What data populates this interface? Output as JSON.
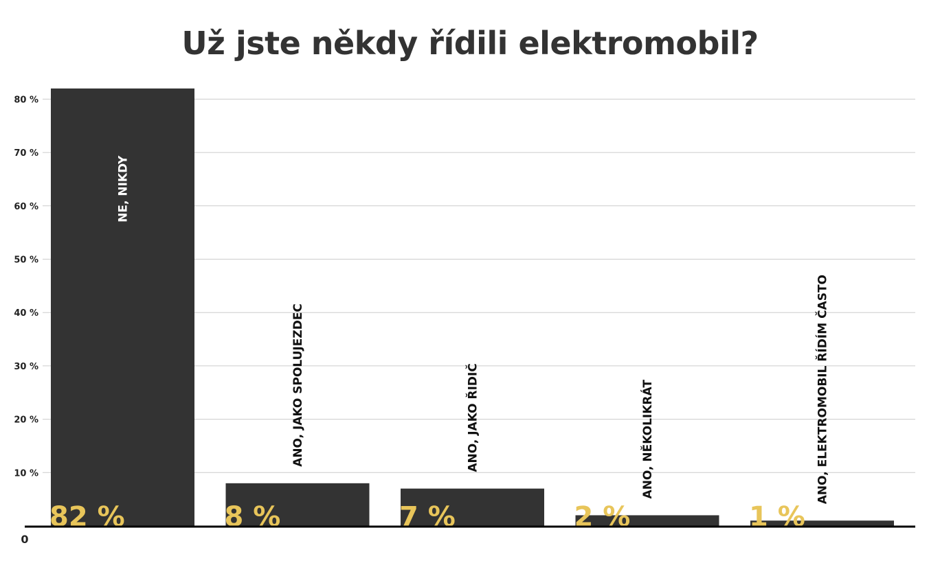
{
  "chart_data": {
    "type": "bar",
    "title": "Už jste někdy řídili elektromobil?",
    "categories": [
      "NE, NIKDY",
      "ANO, JAKO SPOLUJEZDEC",
      "ANO, JAKO ŘIDIČ",
      "ANO, NĚKOLIKRÁT",
      "ANO, ELEKTROMOBIL ŘÍDÍM ČASTO"
    ],
    "values": [
      82,
      8,
      7,
      2,
      1
    ],
    "value_labels": [
      "82 %",
      "8 %",
      "7 %",
      "2 %",
      "1 %"
    ],
    "y_ticks": [
      10,
      20,
      30,
      40,
      50,
      60,
      70,
      80
    ],
    "y_tick_labels": [
      "10 %",
      "20 %",
      "30 %",
      "40 %",
      "50 %",
      "60 %",
      "70 %",
      "80 %"
    ],
    "zero_label": "0",
    "ylim": [
      0,
      82.5
    ],
    "grid": true,
    "colors": {
      "bar": "#333333",
      "value_label": "#e8c55a",
      "grid": "#cccccc",
      "axis": "#000000",
      "label_on_bar": "#ffffff",
      "label_outside": "#111111"
    }
  }
}
